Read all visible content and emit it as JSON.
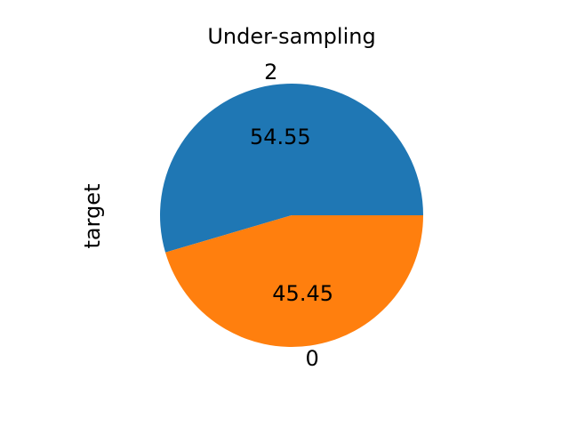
{
  "chart_data": {
    "type": "pie",
    "title": "Under-sampling",
    "ylabel": "target",
    "slices": [
      {
        "label": "2",
        "value": 54.55,
        "display": "54.55",
        "color": "#1f77b4"
      },
      {
        "label": "0",
        "value": 45.45,
        "display": "45.45",
        "color": "#ff7f0e"
      }
    ],
    "legend": "none",
    "grid": false
  }
}
